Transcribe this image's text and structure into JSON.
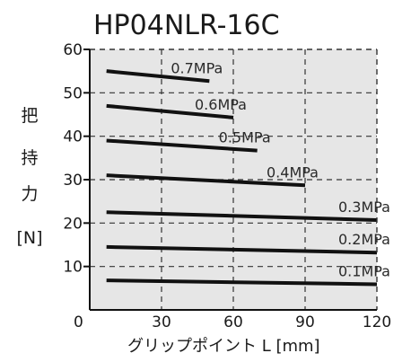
{
  "chart_data": {
    "type": "line",
    "title": "HP04NLR-16C",
    "xlabel": "グリップポイント L [mm]",
    "ylabel": [
      "把",
      "持",
      "力",
      "[N]"
    ],
    "xlim": [
      0,
      120
    ],
    "ylim": [
      0,
      60
    ],
    "xticks": [
      0,
      30,
      60,
      90,
      120
    ],
    "yticks": [
      10,
      20,
      30,
      40,
      50,
      60
    ],
    "grid": true,
    "series": [
      {
        "name": "0.7MPa",
        "x": [
          7,
          50
        ],
        "y": [
          55,
          52.7
        ]
      },
      {
        "name": "0.6MPa",
        "x": [
          7,
          60
        ],
        "y": [
          47,
          44.3
        ]
      },
      {
        "name": "0.5MPa",
        "x": [
          7,
          70
        ],
        "y": [
          39,
          36.7
        ]
      },
      {
        "name": "0.4MPa",
        "x": [
          7,
          90
        ],
        "y": [
          31,
          28.7
        ]
      },
      {
        "name": "0.3MPa",
        "x": [
          7,
          120
        ],
        "y": [
          22.5,
          20.7
        ]
      },
      {
        "name": "0.2MPa",
        "x": [
          7,
          120
        ],
        "y": [
          14.5,
          13.2
        ]
      },
      {
        "name": "0.1MPa",
        "x": [
          7,
          120
        ],
        "y": [
          6.8,
          5.9
        ]
      }
    ],
    "colors": {
      "background": "#e6e6e6",
      "line": "#111111",
      "grid": "#333333"
    }
  }
}
